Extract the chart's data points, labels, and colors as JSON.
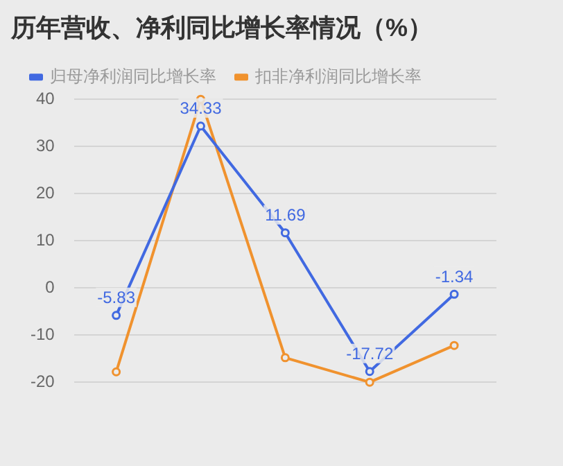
{
  "chart_data": {
    "type": "line",
    "title": "历年营收、净利同比增长率情况（%）",
    "categories": [
      null,
      null,
      null,
      null,
      null
    ],
    "series": [
      {
        "name": "归母净利润同比增长率",
        "color": "#4169e1",
        "values": [
          -5.83,
          34.33,
          11.69,
          -17.72,
          -1.34
        ],
        "value_labels": [
          "-5.83",
          "34.33",
          "11.69",
          "-17.72",
          "-1.34"
        ]
      },
      {
        "name": "扣非净利润同比增长率",
        "color": "#f0922e",
        "values": [
          -17.8,
          40,
          -14.8,
          -20,
          -12.2
        ]
      }
    ],
    "ylim": [
      -20,
      40
    ],
    "yticks": [
      -20,
      -10,
      0,
      10,
      20,
      30,
      40
    ],
    "grid": "y",
    "legend": "top",
    "marker": "circle",
    "line_style": "solid"
  }
}
